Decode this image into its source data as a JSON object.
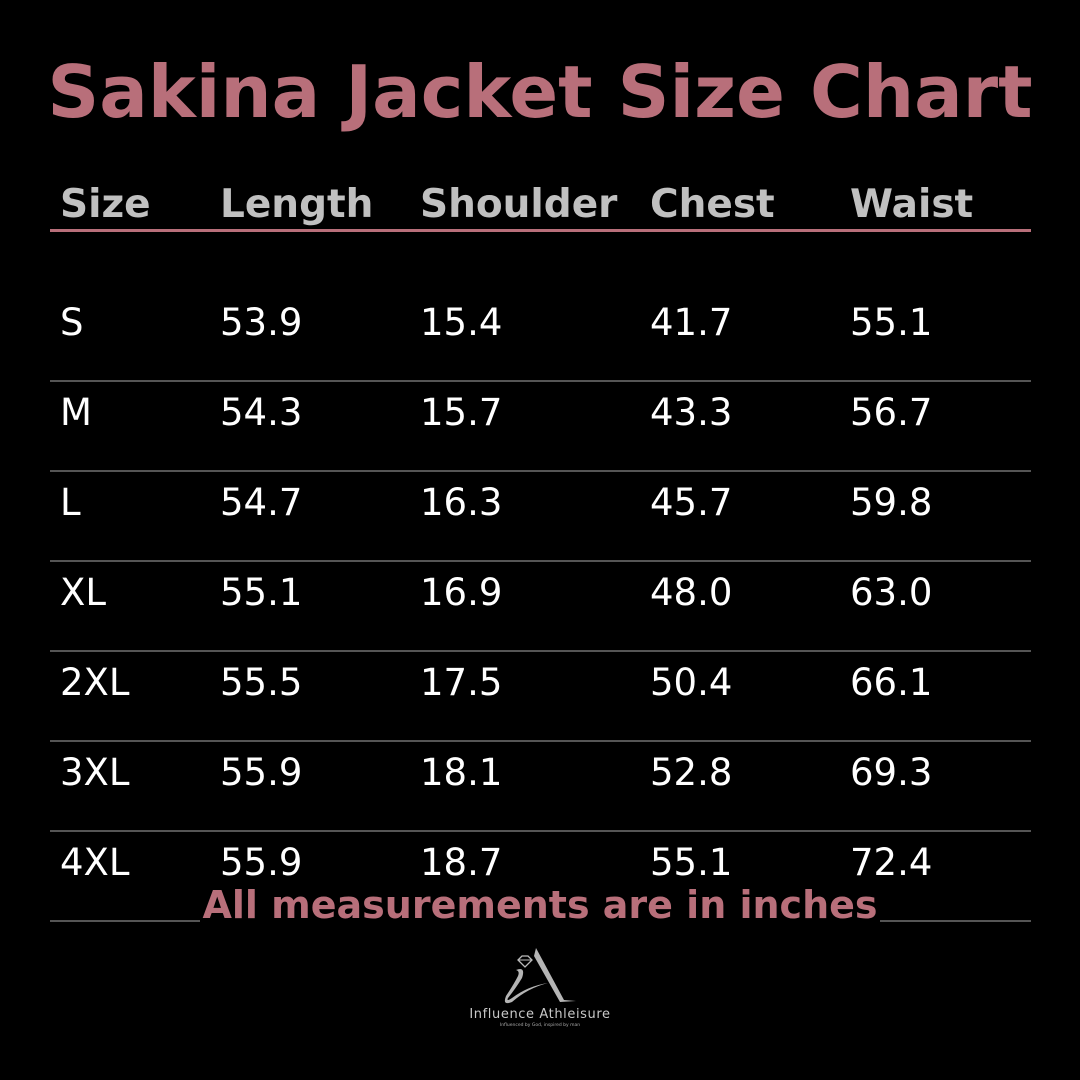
{
  "title": "Sakina Jacket Size Chart",
  "colors": {
    "accent": "#b86f7a",
    "header_text": "#c0c0c0",
    "body_text": "#ffffff",
    "background": "#000000"
  },
  "table": {
    "headers": [
      "Size",
      "Length",
      "Shoulder",
      "Chest",
      "Waist"
    ],
    "rows": [
      [
        "S",
        "53.9",
        "15.4",
        "41.7",
        "55.1"
      ],
      [
        "M",
        "54.3",
        "15.7",
        "43.3",
        "56.7"
      ],
      [
        "L",
        "54.7",
        "16.3",
        "45.7",
        "59.8"
      ],
      [
        "XL",
        "55.1",
        "16.9",
        "48.0",
        "63.0"
      ],
      [
        "2XL",
        "55.5",
        "17.5",
        "50.4",
        "66.1"
      ],
      [
        "3XL",
        "55.9",
        "18.1",
        "52.8",
        "69.3"
      ],
      [
        "4XL",
        "55.9",
        "18.7",
        "55.1",
        "72.4"
      ]
    ]
  },
  "footer_note": "All measurements are in inches",
  "logo": {
    "brand": "Influence Athleisure",
    "tagline": "Influenced by God, inspired by man"
  }
}
